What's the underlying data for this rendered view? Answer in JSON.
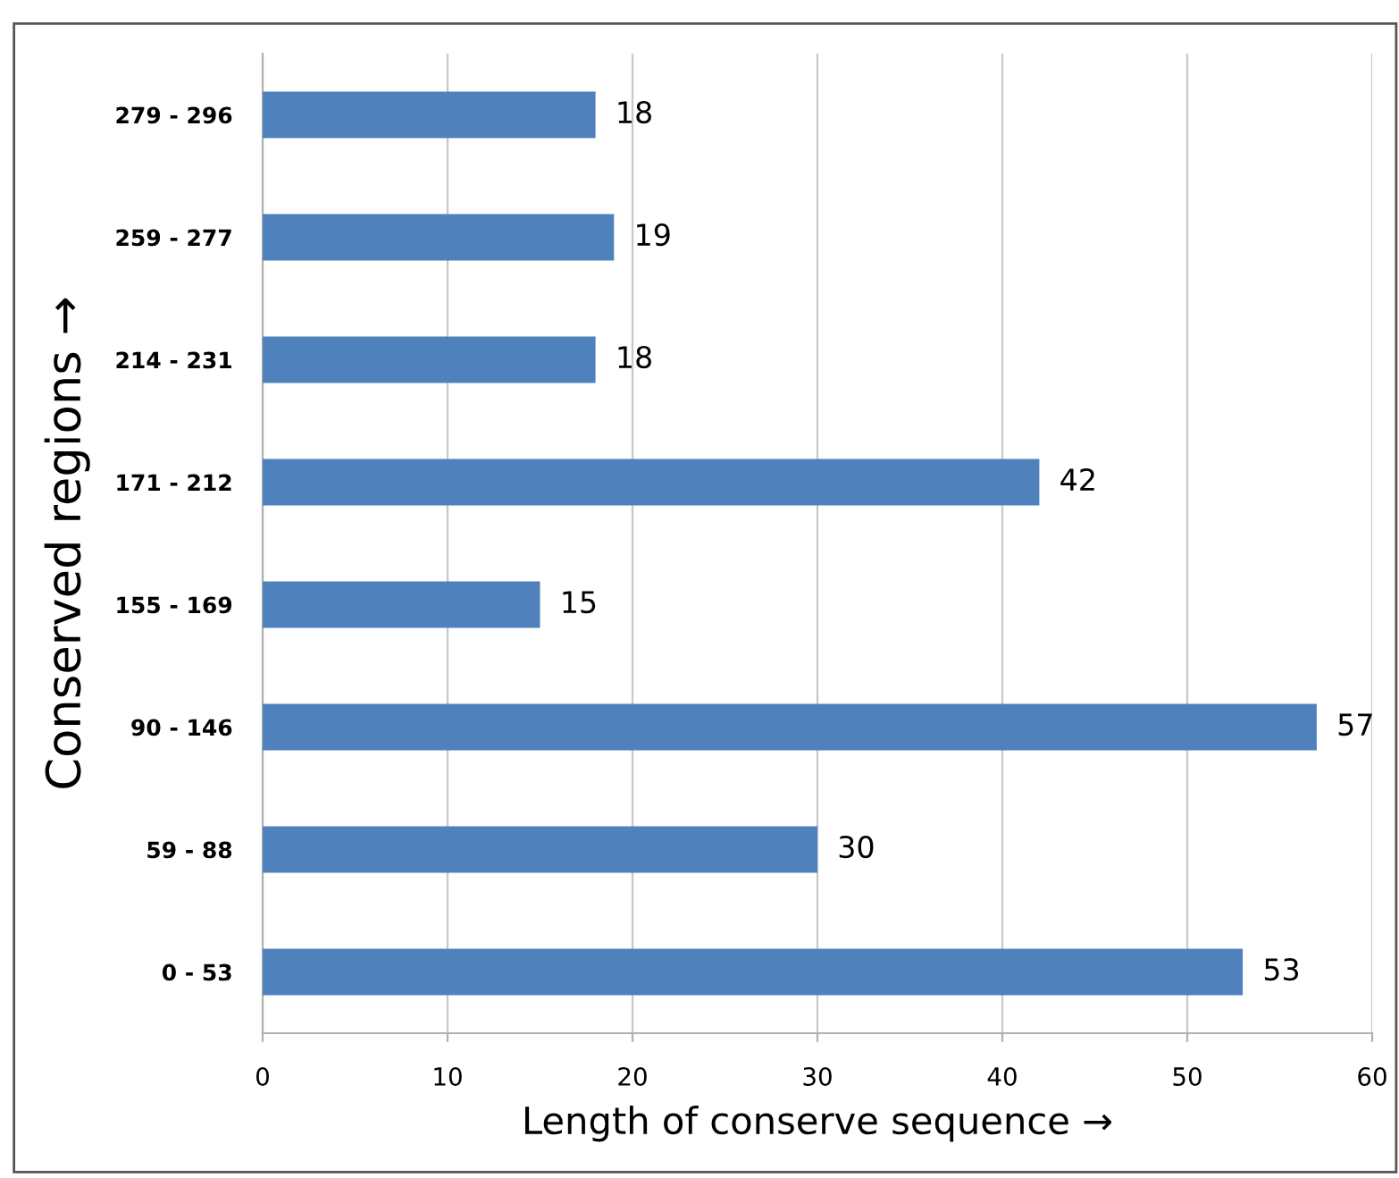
{
  "chart_data": {
    "type": "bar",
    "orientation": "horizontal",
    "categories": [
      "279 - 296",
      "259 - 277",
      "214 - 231",
      "171 - 212",
      "155 - 169",
      "90 - 146",
      "59 - 88",
      "0 - 53"
    ],
    "values": [
      18,
      19,
      18,
      42,
      15,
      57,
      30,
      53
    ],
    "color": "#4f81bd",
    "xlim": [
      0,
      60
    ],
    "xticks": [
      0,
      10,
      20,
      30,
      40,
      50,
      60
    ],
    "grid": "x",
    "data_labels": true,
    "xlabel": "Length of conserve sequence →",
    "ylabel": "Conserved regions →"
  }
}
